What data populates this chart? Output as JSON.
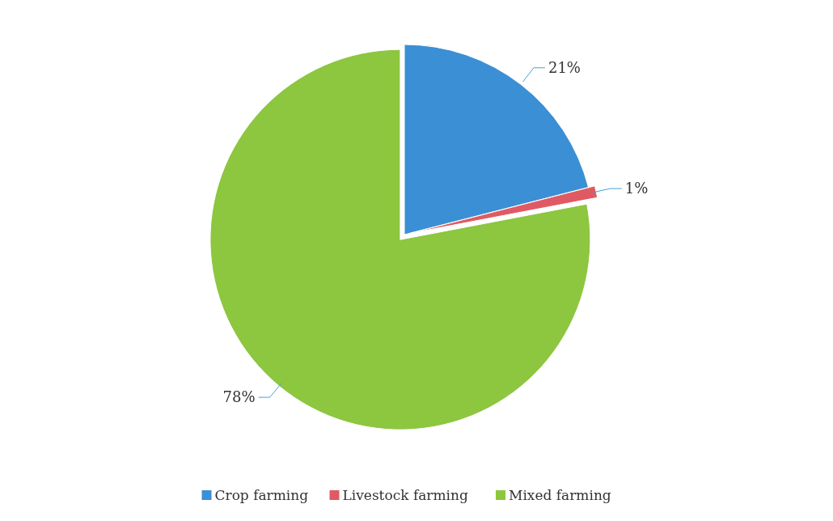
{
  "chart_data": {
    "type": "pie",
    "categories": [
      "Crop farming",
      "Livestock farming",
      "Mixed farming"
    ],
    "values": [
      21,
      1,
      78
    ],
    "colors": [
      "#3b8fd4",
      "#e05a63",
      "#8dc63f"
    ],
    "value_labels": [
      "21%",
      "1%",
      "78%"
    ],
    "legend": "bottom"
  }
}
